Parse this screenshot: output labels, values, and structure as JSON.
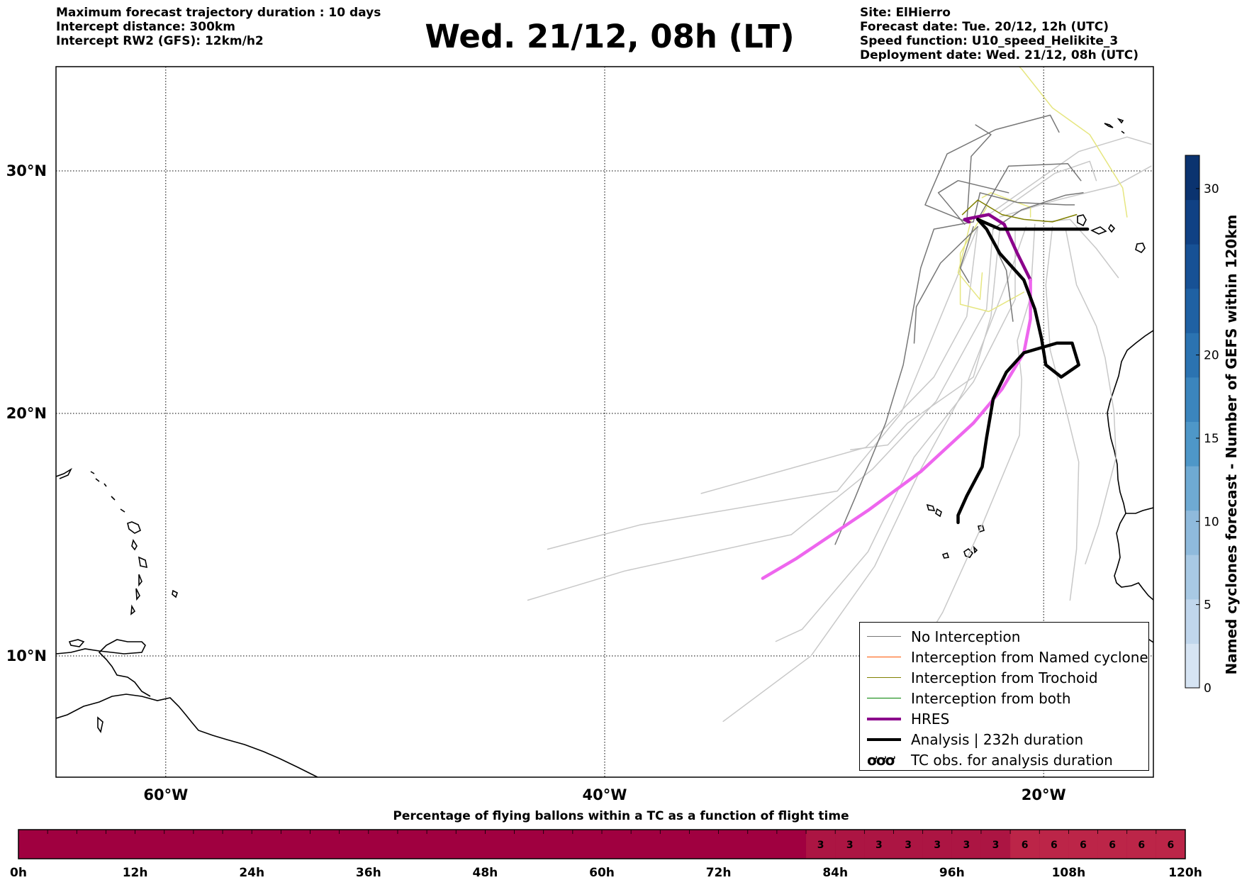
{
  "header": {
    "title": "Wed. 21/12, 08h (LT)",
    "left_lines": [
      "Maximum forecast trajectory duration : 10 days",
      "Intercept distance: 300km",
      "Intercept RW2 (GFS):  12km/h2"
    ],
    "right_lines": [
      "Site: ElHierro",
      "Forecast date: Tue. 20/12, 12h (UTC)",
      "Speed function: U10_speed_Helikite_3",
      "Deployment date: Wed. 21/12, 08h (UTC)"
    ]
  },
  "legend": [
    {
      "label": "No Interception",
      "color": "#777777",
      "width": 1.5
    },
    {
      "label": "Interception from Named cyclone",
      "color": "#ff5500",
      "width": 1.5
    },
    {
      "label": "Interception from Trochoid",
      "color": "#808000",
      "width": 1.5
    },
    {
      "label": "Interception from both",
      "color": "#008000",
      "width": 1.5
    },
    {
      "label": "HRES",
      "color": "#8b008b",
      "width": 4
    },
    {
      "label": "Analysis | 232h duration",
      "color": "#000000",
      "width": 4.5
    },
    {
      "label": "TC obs. for analysis duration",
      "symbol": "ơơơ"
    }
  ],
  "colorbar": {
    "label": "Named cyclones forecast - Number of GEFS within 120km",
    "ticks": [
      "0",
      "5",
      "10",
      "15",
      "20",
      "30"
    ],
    "colors": [
      "#d6e4f3",
      "#c0d6ec",
      "#a8c9e4",
      "#8fbadc",
      "#6faad3",
      "#4e97c8",
      "#3b85bd",
      "#2b73b1",
      "#1f61a3",
      "#175195",
      "#104184",
      "#0b336f"
    ]
  },
  "timeseries": {
    "title": "Percentage of flying ballons within a TC as a function of flight time",
    "ticks": [
      "0h",
      "12h",
      "24h",
      "36h",
      "48h",
      "60h",
      "72h",
      "84h",
      "96h",
      "108h",
      "120h"
    ],
    "base_color": "#a00040",
    "cells": [
      {
        "start": 81,
        "end": 84,
        "value": "3",
        "color": "#ac1543"
      },
      {
        "start": 84,
        "end": 87,
        "value": "3",
        "color": "#ac1543"
      },
      {
        "start": 87,
        "end": 90,
        "value": "3",
        "color": "#ac1543"
      },
      {
        "start": 90,
        "end": 93,
        "value": "3",
        "color": "#ac1543"
      },
      {
        "start": 93,
        "end": 96,
        "value": "3",
        "color": "#ac1543"
      },
      {
        "start": 96,
        "end": 99,
        "value": "3",
        "color": "#ac1543"
      },
      {
        "start": 99,
        "end": 102,
        "value": "3",
        "color": "#ac1543"
      },
      {
        "start": 102,
        "end": 105,
        "value": "6",
        "color": "#bc2548"
      },
      {
        "start": 105,
        "end": 108,
        "value": "6",
        "color": "#bc2548"
      },
      {
        "start": 108,
        "end": 111,
        "value": "6",
        "color": "#bc2548"
      },
      {
        "start": 111,
        "end": 114,
        "value": "6",
        "color": "#bc2548"
      },
      {
        "start": 114,
        "end": 117,
        "value": "6",
        "color": "#bc2548"
      },
      {
        "start": 117,
        "end": 120,
        "value": "6",
        "color": "#bc2548"
      }
    ]
  },
  "chart_data": {
    "type": "map-trajectories",
    "lon_ticks": [
      {
        "value": -60,
        "label": "60°W"
      },
      {
        "value": -40,
        "label": "40°W"
      },
      {
        "value": -20,
        "label": "20°W"
      }
    ],
    "lat_ticks": [
      {
        "value": 30,
        "label": "30°N"
      },
      {
        "value": 20,
        "label": "20°N"
      },
      {
        "value": 10,
        "label": "10°N"
      }
    ],
    "lon_range": [
      -65,
      -15
    ],
    "lat_range": [
      5,
      34.3
    ],
    "grid": true,
    "legend_position": "bottom-right",
    "series": [
      {
        "category": "HRES",
        "color": "#8b008b",
        "points": [
          [
            -23.4,
            27.9
          ],
          [
            -23.6,
            28.0
          ],
          [
            -22.5,
            28.2
          ],
          [
            -21.8,
            27.8
          ],
          [
            -21.2,
            26.6
          ],
          [
            -20.6,
            25.5
          ]
        ]
      },
      {
        "category": "HRES-continuation",
        "color": "#ee66ee",
        "points": [
          [
            -20.6,
            25.5
          ],
          [
            -20.6,
            23.9
          ],
          [
            -20.9,
            22.5
          ],
          [
            -21.9,
            21.0
          ],
          [
            -23.2,
            19.6
          ],
          [
            -25.6,
            17.6
          ],
          [
            -28.0,
            16.0
          ],
          [
            -31.3,
            14.0
          ],
          [
            -32.8,
            13.2
          ]
        ]
      },
      {
        "category": "Analysis",
        "color": "#000000",
        "points": [
          [
            -23.0,
            28.0
          ],
          [
            -22.6,
            27.6
          ],
          [
            -22.0,
            26.6
          ],
          [
            -20.9,
            25.5
          ],
          [
            -20.4,
            24.3
          ],
          [
            -20.1,
            23.1
          ],
          [
            -19.9,
            22.0
          ],
          [
            -19.2,
            21.5
          ],
          [
            -18.4,
            22.0
          ],
          [
            -18.7,
            22.9
          ],
          [
            -19.4,
            22.9
          ],
          [
            -20.9,
            22.5
          ],
          [
            -21.7,
            21.7
          ],
          [
            -22.3,
            20.6
          ],
          [
            -22.6,
            19.0
          ],
          [
            -22.8,
            17.8
          ],
          [
            -23.5,
            16.6
          ],
          [
            -23.9,
            15.8
          ],
          [
            -23.9,
            15.5
          ]
        ]
      },
      {
        "category": "Analysis-east",
        "color": "#000000",
        "points": [
          [
            -23.0,
            28.0
          ],
          [
            -22.0,
            27.6
          ],
          [
            -20.0,
            27.6
          ],
          [
            -18.0,
            27.6
          ]
        ]
      },
      {
        "category": "No Interception",
        "color": "#777777",
        "points": [
          [
            -23.2,
            27.9
          ],
          [
            -25.0,
            27.6
          ],
          [
            -25.6,
            26.0
          ],
          [
            -26.4,
            22.0
          ],
          [
            -27.2,
            19.6
          ],
          [
            -28.6,
            16.5
          ],
          [
            -29.5,
            14.6
          ]
        ]
      },
      {
        "category": "No Interception",
        "color": "#777777",
        "points": [
          [
            -23.5,
            27.9
          ],
          [
            -25.4,
            28.6
          ],
          [
            -24.4,
            30.7
          ],
          [
            -22.2,
            31.7
          ],
          [
            -19.7,
            32.3
          ],
          [
            -19.3,
            31.6
          ]
        ]
      },
      {
        "category": "No Interception",
        "color": "#777777",
        "points": [
          [
            -23.0,
            27.7
          ],
          [
            -24.7,
            26.2
          ],
          [
            -25.8,
            24.4
          ],
          [
            -25.9,
            22.9
          ]
        ]
      },
      {
        "category": "No Interception",
        "color": "#777777",
        "points": [
          [
            -23.2,
            27.9
          ],
          [
            -22.9,
            29.1
          ],
          [
            -21.2,
            28.7
          ],
          [
            -19.0,
            28.6
          ],
          [
            -18.6,
            28.6
          ]
        ]
      },
      {
        "category": "No Interception",
        "color": "#777777",
        "points": [
          [
            -23.5,
            27.9
          ],
          [
            -23.3,
            30.6
          ],
          [
            -22.4,
            31.5
          ],
          [
            -23.1,
            31.9
          ]
        ]
      },
      {
        "category": "No Interception",
        "color": "#777777",
        "points": [
          [
            -23.0,
            28.0
          ],
          [
            -21.6,
            30.2
          ],
          [
            -18.9,
            30.3
          ],
          [
            -18.3,
            29.6
          ]
        ]
      },
      {
        "category": "No Interception",
        "color": "#777777",
        "points": [
          [
            -22.6,
            27.6
          ],
          [
            -21.7,
            25.9
          ],
          [
            -21.4,
            23.8
          ]
        ]
      },
      {
        "category": "No Interception",
        "color": "#777777",
        "points": [
          [
            -22.3,
            27.6
          ],
          [
            -21.0,
            28.4
          ],
          [
            -19.0,
            29.0
          ],
          [
            -18.2,
            29.1
          ]
        ]
      },
      {
        "category": "No Interception",
        "color": "#777777",
        "points": [
          [
            -23.6,
            27.8
          ],
          [
            -24.8,
            29.1
          ],
          [
            -23.9,
            29.6
          ],
          [
            -21.6,
            29.1
          ]
        ]
      },
      {
        "category": "No Interception",
        "color": "#777777",
        "points": [
          [
            -23.2,
            27.7
          ],
          [
            -23.8,
            26.0
          ],
          [
            -23.4,
            25.4
          ]
        ]
      },
      {
        "category": "Other member",
        "color": "#c8c8c8",
        "points": [
          [
            -23.0,
            27.7
          ],
          [
            -26.5,
            20.0
          ],
          [
            -29.4,
            16.8
          ],
          [
            -38.4,
            15.4
          ],
          [
            -42.6,
            14.4
          ]
        ]
      },
      {
        "category": "Other member",
        "color": "#c8c8c8",
        "points": [
          [
            -23.0,
            27.7
          ],
          [
            -23.5,
            24.0
          ],
          [
            -25.0,
            21.5
          ],
          [
            -28.1,
            18.6
          ],
          [
            -35.6,
            16.7
          ]
        ]
      },
      {
        "category": "Other member",
        "color": "#c8c8c8",
        "points": [
          [
            -22.0,
            27.6
          ],
          [
            -22.4,
            24.0
          ],
          [
            -23.2,
            21.5
          ],
          [
            -26.2,
            19.6
          ],
          [
            -27.1,
            18.7
          ],
          [
            -28.8,
            18.5
          ]
        ]
      },
      {
        "category": "Other member",
        "color": "#c8c8c8",
        "points": [
          [
            -22.3,
            27.7
          ],
          [
            -22.6,
            24.3
          ],
          [
            -24.9,
            20.5
          ],
          [
            -27.8,
            17.7
          ],
          [
            -31.5,
            15.0
          ],
          [
            -39.1,
            13.5
          ],
          [
            -43.5,
            12.3
          ]
        ]
      },
      {
        "category": "Other member",
        "color": "#c8c8c8",
        "points": [
          [
            -21.3,
            27.6
          ],
          [
            -21.3,
            24.7
          ],
          [
            -23.2,
            21.3
          ],
          [
            -25.9,
            18.2
          ],
          [
            -28.0,
            14.3
          ],
          [
            -31.0,
            11.1
          ],
          [
            -32.2,
            10.6
          ]
        ]
      },
      {
        "category": "Other member",
        "color": "#c8c8c8",
        "points": [
          [
            -20.8,
            27.7
          ],
          [
            -21.6,
            25.6
          ],
          [
            -23.6,
            21.0
          ],
          [
            -25.6,
            17.7
          ],
          [
            -27.7,
            13.7
          ],
          [
            -30.6,
            10.0
          ],
          [
            -34.6,
            7.3
          ]
        ]
      },
      {
        "category": "Other member",
        "color": "#c8c8c8",
        "points": [
          [
            -20.4,
            27.8
          ],
          [
            -20.6,
            24.8
          ],
          [
            -21.2,
            23.0
          ],
          [
            -21.0,
            21.4
          ],
          [
            -21.1,
            19.1
          ],
          [
            -22.8,
            15.4
          ],
          [
            -24.6,
            11.8
          ],
          [
            -26.2,
            9.4
          ]
        ]
      },
      {
        "category": "Other member",
        "color": "#c8c8c8",
        "points": [
          [
            -19.6,
            27.7
          ],
          [
            -19.9,
            25.3
          ],
          [
            -19.7,
            22.6
          ],
          [
            -19.0,
            20.2
          ],
          [
            -18.4,
            18.0
          ],
          [
            -18.5,
            14.4
          ],
          [
            -18.8,
            12.3
          ]
        ]
      },
      {
        "category": "Other member",
        "color": "#c8c8c8",
        "points": [
          [
            -19.0,
            27.6
          ],
          [
            -18.5,
            25.3
          ],
          [
            -17.6,
            23.6
          ],
          [
            -17.2,
            22.3
          ],
          [
            -16.8,
            20.1
          ],
          [
            -16.7,
            18.2
          ],
          [
            -17.5,
            15.4
          ],
          [
            -18.1,
            13.8
          ]
        ]
      },
      {
        "category": "Other member",
        "color": "#c8c8c8",
        "points": [
          [
            -20.0,
            27.9
          ],
          [
            -18.8,
            28.0
          ],
          [
            -17.6,
            26.8
          ],
          [
            -16.6,
            25.6
          ]
        ]
      },
      {
        "category": "Other member",
        "color": "#c8c8c8",
        "points": [
          [
            -22.0,
            28.1
          ],
          [
            -19.4,
            28.8
          ],
          [
            -16.7,
            29.4
          ],
          [
            -15.1,
            30.2
          ]
        ]
      },
      {
        "category": "Other member",
        "color": "#c8c8c8",
        "points": [
          [
            -22.0,
            28.3
          ],
          [
            -19.5,
            29.9
          ],
          [
            -17.9,
            30.4
          ],
          [
            -17.6,
            29.6
          ]
        ]
      },
      {
        "category": "Other member",
        "color": "#c8c8c8",
        "points": [
          [
            -22.5,
            28.2
          ],
          [
            -18.4,
            30.8
          ],
          [
            -16.2,
            31.4
          ],
          [
            -15.1,
            31.1
          ]
        ]
      },
      {
        "category": "Other member",
        "color": "#e6e680",
        "points": [
          [
            -22.6,
            28.5
          ],
          [
            -23.8,
            26.6
          ],
          [
            -23.8,
            24.5
          ],
          [
            -22.5,
            24.2
          ],
          [
            -21.7,
            24.6
          ],
          [
            -20.9,
            25.0
          ]
        ]
      },
      {
        "category": "Other member",
        "color": "#e6e680",
        "points": [
          [
            -23.3,
            28.0
          ],
          [
            -23.9,
            25.8
          ],
          [
            -22.9,
            24.7
          ],
          [
            -22.8,
            25.8
          ]
        ]
      },
      {
        "category": "Other member",
        "color": "#e6e680",
        "points": [
          [
            -22.8,
            28.9
          ],
          [
            -22.4,
            29.1
          ],
          [
            -21.2,
            28.7
          ],
          [
            -20.6,
            28.5
          ],
          [
            -20.6,
            28.1
          ]
        ]
      },
      {
        "category": "Other member",
        "color": "#e6e680",
        "points": [
          [
            -23.0,
            36.0
          ],
          [
            -21.0,
            34.2
          ],
          [
            -19.6,
            32.6
          ],
          [
            -17.9,
            31.5
          ],
          [
            -16.4,
            29.3
          ],
          [
            -16.2,
            28.1
          ]
        ]
      },
      {
        "category": "Interception from Trochoid",
        "color": "#808000",
        "points": [
          [
            -23.7,
            28.2
          ],
          [
            -23.0,
            28.8
          ],
          [
            -21.9,
            28.2
          ],
          [
            -20.9,
            28.0
          ],
          [
            -19.6,
            27.9
          ],
          [
            -18.5,
            28.2
          ]
        ]
      }
    ]
  }
}
